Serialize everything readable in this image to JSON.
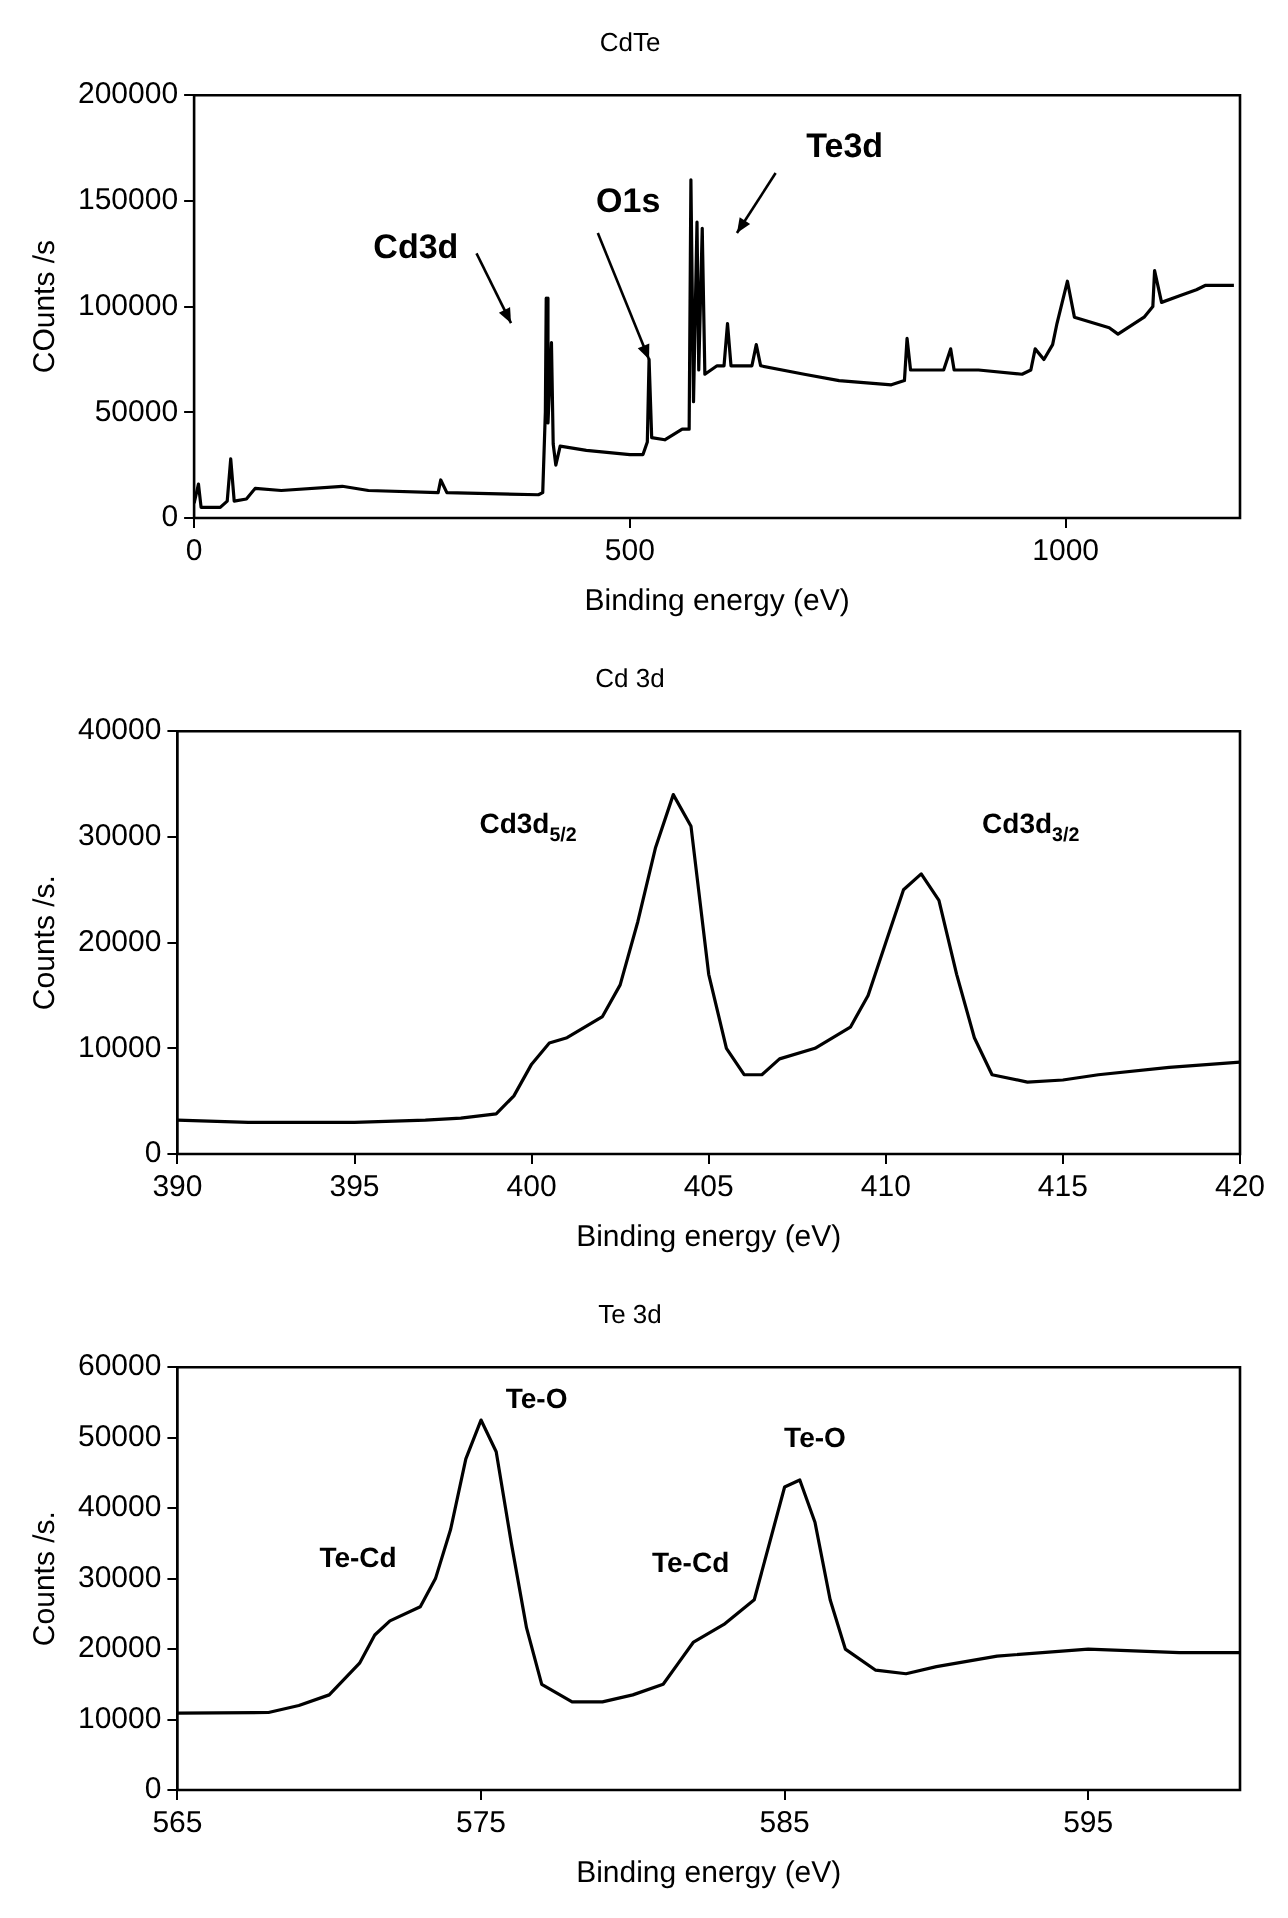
{
  "chart_data": [
    {
      "type": "line",
      "title": "CdTe",
      "xlabel": "Binding energy (eV)",
      "ylabel": "COunts /s",
      "xlim": [
        0,
        1200
      ],
      "xticks": [
        0,
        500,
        1000
      ],
      "ylim": [
        0,
        200000
      ],
      "yticks": [
        0,
        50000,
        100000,
        150000,
        200000
      ],
      "grid": false,
      "legend": false,
      "marker": "none",
      "line_style": "solid",
      "series": [
        {
          "color": "#000000",
          "x": [
            0,
            5,
            8,
            30,
            38,
            42,
            46,
            60,
            70,
            100,
            170,
            200,
            280,
            283,
            290,
            395,
            400,
            403,
            404,
            406,
            410,
            412,
            415,
            420,
            450,
            500,
            515,
            520,
            522,
            525,
            540,
            560,
            568,
            570,
            573,
            577,
            579,
            583,
            586,
            600,
            608,
            612,
            616,
            640,
            645,
            650,
            700,
            740,
            800,
            815,
            818,
            822,
            860,
            868,
            872,
            900,
            950,
            960,
            965,
            975,
            985,
            990,
            1002,
            1010,
            1050,
            1060,
            1090,
            1100,
            1102,
            1110,
            1130,
            1150,
            1160,
            1193
          ],
          "values": [
            7000,
            16000,
            5000,
            5000,
            8000,
            28000,
            8000,
            9000,
            14000,
            13000,
            15000,
            13000,
            12000,
            18000,
            12000,
            11000,
            12000,
            50000,
            104000,
            45000,
            83000,
            35000,
            25000,
            34000,
            32000,
            30000,
            30000,
            36000,
            75000,
            38000,
            37000,
            42000,
            42000,
            160000,
            55000,
            140000,
            70000,
            137000,
            68000,
            72000,
            72000,
            92000,
            72000,
            72000,
            82000,
            72000,
            68000,
            65000,
            63000,
            65000,
            85000,
            70000,
            70000,
            80000,
            70000,
            70000,
            68000,
            70000,
            80000,
            75000,
            82000,
            92000,
            112000,
            95000,
            90000,
            87000,
            95000,
            100000,
            117000,
            102000,
            105000,
            108000,
            110000,
            110000
          ]
        }
      ],
      "annotations": [
        "Cd3d",
        {
          "text": "O1s",
          "x": 522,
          "y": 75000
        },
        "Te3d"
      ]
    },
    {
      "type": "line",
      "title": "Cd 3d",
      "xlabel": "Binding energy (eV)",
      "ylabel": "Counts /s.",
      "xlim": [
        390,
        420
      ],
      "xticks": [
        390,
        395,
        400,
        405,
        410,
        415,
        420
      ],
      "ylim": [
        0,
        40000
      ],
      "yticks": [
        0,
        10000,
        20000,
        30000,
        40000
      ],
      "grid": false,
      "legend": false,
      "marker": "none",
      "line_style": "solid",
      "series": [
        {
          "color": "#000000",
          "x": [
            390,
            392,
            395,
            397,
            398,
            399,
            399.5,
            400,
            400.5,
            401,
            402,
            402.5,
            403,
            403.5,
            404,
            404.5,
            405,
            405.5,
            406,
            406.5,
            407,
            408,
            409,
            409.5,
            410,
            410.5,
            411,
            411.5,
            412,
            412.5,
            413,
            414,
            415,
            416,
            418,
            420
          ],
          "values": [
            3200,
            3000,
            3000,
            3200,
            3400,
            3800,
            5500,
            8500,
            10500,
            11000,
            13000,
            16000,
            22000,
            29000,
            34000,
            31000,
            17000,
            10000,
            7500,
            7500,
            9000,
            10000,
            12000,
            15000,
            20000,
            25000,
            26500,
            24000,
            17000,
            11000,
            7500,
            6800,
            7000,
            7500,
            8200,
            8700
          ]
        }
      ],
      "annotations": [
        "Cd3d$_{5/2}$",
        "Cd3d$_{3/2}$"
      ]
    },
    {
      "type": "line",
      "title": "Te 3d",
      "xlabel": "Binding energy (eV)",
      "ylabel": "Counts /s.",
      "xlim": [
        565,
        600
      ],
      "xticks": [
        565,
        575,
        585,
        595
      ],
      "ylim": [
        0,
        60000
      ],
      "yticks": [
        0,
        10000,
        20000,
        30000,
        40000,
        50000,
        60000
      ],
      "grid": false,
      "legend": false,
      "marker": "none",
      "line_style": "solid",
      "series": [
        {
          "color": "#000000",
          "x": [
            565,
            568,
            569,
            570,
            571,
            571.5,
            572,
            573,
            573.5,
            574,
            574.5,
            575,
            575.5,
            576,
            576.5,
            577,
            578,
            579,
            580,
            581,
            581.5,
            582,
            583,
            584,
            584.5,
            585,
            585.5,
            586,
            586.5,
            587,
            588,
            589,
            590,
            592,
            595,
            598,
            600
          ],
          "values": [
            10900,
            11000,
            12000,
            13500,
            18000,
            22000,
            24000,
            26000,
            30000,
            37000,
            47000,
            52500,
            48000,
            35000,
            23000,
            15000,
            12500,
            12500,
            13500,
            15000,
            18000,
            21000,
            23500,
            27000,
            35000,
            43000,
            44000,
            38000,
            27000,
            20000,
            17000,
            16500,
            17500,
            19000,
            20000,
            19500,
            19500
          ]
        }
      ],
      "annotations": [
        "Te-Cd",
        "Te-O",
        "Te-Cd",
        "Te-O"
      ]
    }
  ]
}
